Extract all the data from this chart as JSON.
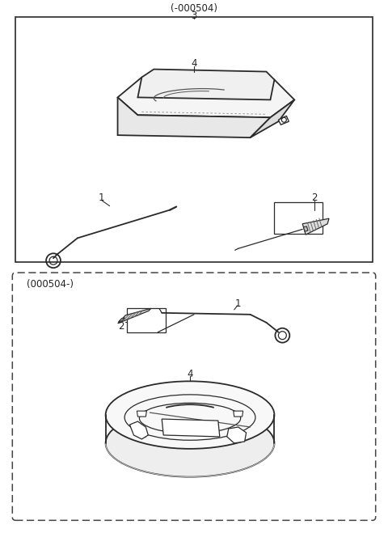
{
  "bg_color": "#ffffff",
  "border_color": "#2a2a2a",
  "text_color": "#222222",
  "figsize": [
    4.8,
    6.59
  ],
  "dpi": 100,
  "lw_thick": 1.8,
  "lw_med": 1.3,
  "lw_thin": 0.9
}
